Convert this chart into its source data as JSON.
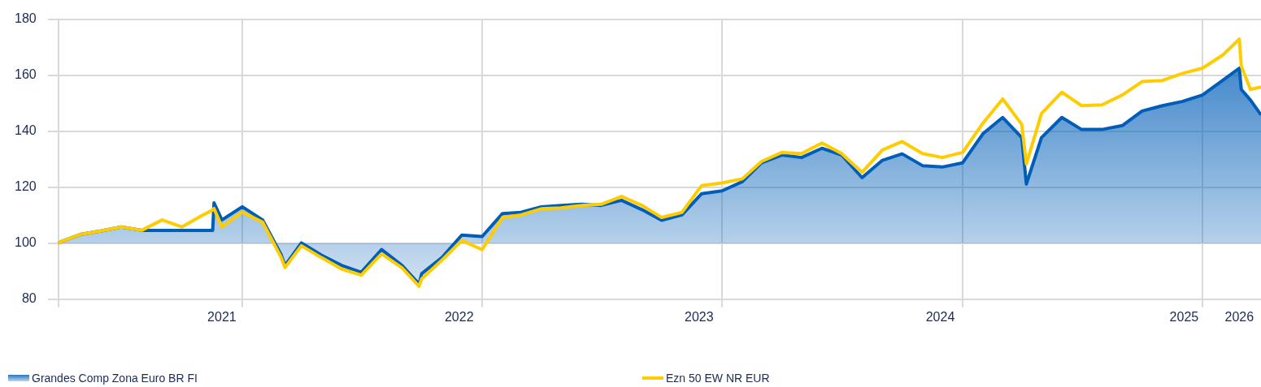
{
  "chart_data": {
    "type": "line",
    "legend": "bottom",
    "grid": true,
    "x": [
      "2021-03-27",
      "2021-04-01",
      "2021-05-01",
      "2021-06-01",
      "2021-07-01",
      "2021-08-01",
      "2021-09-01",
      "2021-10-01",
      "2021-11-01",
      "2021-11-17",
      "2021-11-19",
      "2021-12-01",
      "2022-01-01",
      "2022-02-01",
      "2022-03-01",
      "2022-03-07",
      "2022-04-01",
      "2022-05-01",
      "2022-06-01",
      "2022-07-01",
      "2022-08-01",
      "2022-09-01",
      "2022-09-27",
      "2022-10-01",
      "2022-11-01",
      "2022-12-01",
      "2023-01-01",
      "2023-02-01",
      "2023-03-01",
      "2023-04-01",
      "2023-05-01",
      "2023-06-01",
      "2023-07-01",
      "2023-08-01",
      "2023-09-01",
      "2023-10-01",
      "2023-11-01",
      "2023-12-01",
      "2024-01-01",
      "2024-02-01",
      "2024-03-01",
      "2024-04-01",
      "2024-05-01",
      "2024-06-01",
      "2024-07-01",
      "2024-08-01",
      "2024-09-01",
      "2024-10-01",
      "2024-11-01",
      "2024-12-01",
      "2025-01-01",
      "2025-02-01",
      "2025-03-03",
      "2025-04-01",
      "2025-04-08",
      "2025-05-01",
      "2025-06-01",
      "2025-07-01",
      "2025-08-01",
      "2025-09-01",
      "2025-10-01",
      "2025-11-01",
      "2025-12-01",
      "2026-01-01",
      "2026-02-01",
      "2026-02-26",
      "2026-03-01",
      "2026-03-15",
      "2026-03-31"
    ],
    "series": [
      {
        "name": "Grandes Comp Zona Euro BR FI",
        "type": "area",
        "color": "#005eb8",
        "values": [
          100,
          100.6,
          103.2,
          104.4,
          105.8,
          104.6,
          104.6,
          104.6,
          104.6,
          104.6,
          114.4,
          108.3,
          113.0,
          108.3,
          96,
          92,
          100.1,
          95.8,
          92.1,
          89.6,
          97.7,
          92.1,
          85.4,
          89.1,
          94.9,
          102.9,
          102.4,
          110.6,
          111.0,
          113.0,
          113.5,
          113.9,
          113.5,
          115.3,
          112.0,
          108.2,
          110.1,
          117.7,
          118.7,
          122,
          128.7,
          131.5,
          130.6,
          133.9,
          131.5,
          123.4,
          129.6,
          131.9,
          127.7,
          127.2,
          128.7,
          139.1,
          144.9,
          137.7,
          121.1,
          137.7,
          144.9,
          140.6,
          140.6,
          142,
          147.2,
          149.1,
          150.6,
          152.9,
          158.2,
          162.5,
          154.9,
          151.1,
          145.8
        ]
      },
      {
        "name": "Ezn 50 EW NR EUR",
        "type": "line",
        "color": "#ffcc00",
        "values": [
          100,
          100.6,
          103.2,
          104.4,
          105.8,
          104.6,
          108.3,
          105.8,
          109.9,
          111.9,
          112.4,
          105.8,
          111.1,
          107.5,
          95,
          91.3,
          99.1,
          94.9,
          90.8,
          88.6,
          96.2,
          91.2,
          84.6,
          87.3,
          94.0,
          101.0,
          97.7,
          109.2,
          110.1,
          112.3,
          112.6,
          113.5,
          113.9,
          116.7,
          113.5,
          109.2,
          111.0,
          120.6,
          121.5,
          123,
          129.2,
          132.4,
          132,
          135.8,
          132,
          125.3,
          133.3,
          136.3,
          132,
          130.6,
          132.4,
          142.9,
          151.5,
          142.4,
          128.3,
          146.3,
          153.9,
          149.1,
          149.4,
          152.9,
          157.7,
          158.1,
          160.6,
          162.5,
          167.2,
          172.9,
          163.2,
          154.9,
          155.8
        ]
      }
    ],
    "xlim": [
      "2021-03-11",
      "2026-03-31"
    ],
    "xticks": [
      {
        "value": "2021-03-27",
        "label": null
      },
      {
        "value": "2021-12-01",
        "label": "2021"
      },
      {
        "value": "2022-01-01",
        "label": null
      },
      {
        "value": "2022-11-27",
        "label": "2022"
      },
      {
        "value": "2023-01-01",
        "label": null
      },
      {
        "value": "2023-11-27",
        "label": "2023"
      },
      {
        "value": "2024-01-01",
        "label": null
      },
      {
        "value": "2024-11-28",
        "label": "2024"
      },
      {
        "value": "2025-01-01",
        "label": null
      },
      {
        "value": "2025-12-04",
        "label": "2025"
      },
      {
        "value": "2026-01-01",
        "label": null
      },
      {
        "value": "2026-02-26",
        "label": "2026"
      }
    ],
    "ylim": [
      80,
      180
    ],
    "yticks": [
      80,
      100,
      120,
      140,
      160,
      180
    ]
  }
}
